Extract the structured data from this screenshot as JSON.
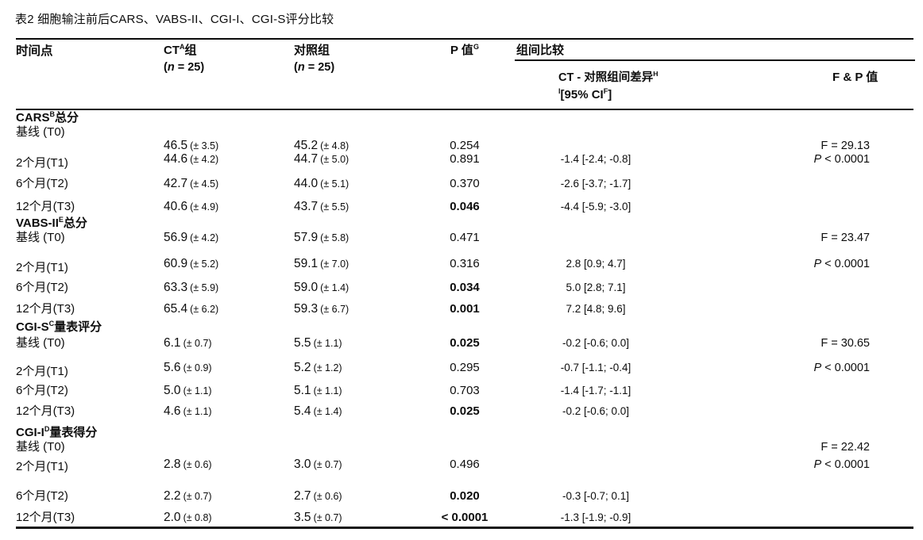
{
  "title": "表2 细胞输注前后CARS、VABS-II、CGI-I、CGI-S评分比较",
  "header": {
    "time_point": "时间点",
    "ct_group": {
      "pre": "CT",
      "sup": "A",
      "post": "组",
      "n_open": "(",
      "n_char": "n",
      "n_rest": " = 25)"
    },
    "control_group": {
      "label": "对照组",
      "n_open": "(",
      "n_char": "n",
      "n_rest": " = 25)"
    },
    "p_value": {
      "pre": "P 值",
      "sup": "G"
    },
    "group_comparison": "组间比较",
    "diff": {
      "pre": "CT - 对照组间差异",
      "sup": "H"
    },
    "ci": {
      "sup_pre": "I",
      "pre": "[95% CI",
      "sup": "F",
      "post": "]"
    },
    "fp": "F & P 值"
  },
  "sections": [
    {
      "name": {
        "pre": "CARS",
        "sup": "B",
        "post": "总分"
      },
      "f_stat": "F = 29.13",
      "p_stat": "P < 0.0001",
      "rows": [
        {
          "label": "基线 (T0)",
          "ct": {
            "v": "46.5",
            "sd": "(± 3.5)"
          },
          "ctrl": {
            "v": "45.2",
            "sd": "(± 4.8)"
          },
          "p": "0.254",
          "p_bold": false,
          "diff": ""
        },
        {
          "label": "2个月(T1)",
          "ct": {
            "v": "44.6",
            "sd": "(± 4.2)"
          },
          "ctrl": {
            "v": "44.7",
            "sd": "(± 5.0)"
          },
          "p": "0.891",
          "p_bold": false,
          "diff": "-1.4 [-2.4; -0.8]"
        },
        {
          "label": "6个月(T2)",
          "ct": {
            "v": "42.7",
            "sd": "(± 4.5)"
          },
          "ctrl": {
            "v": "44.0",
            "sd": "(± 5.1)"
          },
          "p": "0.370",
          "p_bold": false,
          "diff": "-2.6 [-3.7; -1.7]"
        },
        {
          "label": "12个月(T3)",
          "ct": {
            "v": "40.6",
            "sd": "(± 4.9)"
          },
          "ctrl": {
            "v": "43.7",
            "sd": "(± 5.5)"
          },
          "p": "0.046",
          "p_bold": true,
          "diff": "-4.4 [-5.9; -3.0]"
        }
      ]
    },
    {
      "name": {
        "pre": "VABS-II",
        "sup": "E",
        "post": "总分"
      },
      "f_stat": "F = 23.47",
      "p_stat": "P < 0.0001",
      "rows": [
        {
          "label": "基线 (T0)",
          "ct": {
            "v": "56.9",
            "sd": "(± 4.2)"
          },
          "ctrl": {
            "v": "57.9",
            "sd": "(± 5.8)"
          },
          "p": "0.471",
          "p_bold": false,
          "diff": ""
        },
        {
          "label": "2个月(T1)",
          "ct": {
            "v": "60.9",
            "sd": "(± 5.2)"
          },
          "ctrl": {
            "v": "59.1",
            "sd": "(± 7.0)"
          },
          "p": "0.316",
          "p_bold": false,
          "diff": "2.8 [0.9; 4.7]"
        },
        {
          "label": "6个月(T2)",
          "ct": {
            "v": "63.3",
            "sd": "(± 5.9)"
          },
          "ctrl": {
            "v": "59.0",
            "sd": "(± 1.4)"
          },
          "p": "0.034",
          "p_bold": true,
          "diff": "5.0 [2.8; 7.1]"
        },
        {
          "label": "12个月(T3)",
          "ct": {
            "v": "65.4",
            "sd": "(± 6.2)"
          },
          "ctrl": {
            "v": "59.3",
            "sd": "(± 6.7)"
          },
          "p": "0.001",
          "p_bold": true,
          "diff": "7.2 [4.8; 9.6]"
        }
      ]
    },
    {
      "name": {
        "pre": "CGI-S",
        "sup": "C",
        "post": "量表评分"
      },
      "f_stat": "F = 30.65",
      "p_stat": "P < 0.0001",
      "rows": [
        {
          "label": "基线 (T0)",
          "ct": {
            "v": "6.1",
            "sd": "(± 0.7)"
          },
          "ctrl": {
            "v": "5.5",
            "sd": "(± 1.1)"
          },
          "p": "0.025",
          "p_bold": true,
          "diff": "-0.2 [-0.6; 0.0]"
        },
        {
          "label": "2个月(T1)",
          "ct": {
            "v": "5.6",
            "sd": "(± 0.9)"
          },
          "ctrl": {
            "v": "5.2",
            "sd": "(± 1.2)"
          },
          "p": "0.295",
          "p_bold": false,
          "diff": "-0.7 [-1.1; -0.4]"
        },
        {
          "label": "6个月(T2)",
          "ct": {
            "v": "5.0",
            "sd": "(± 1.1)"
          },
          "ctrl": {
            "v": "5.1",
            "sd": "(± 1.1)"
          },
          "p": "0.703",
          "p_bold": false,
          "diff": "-1.4 [-1.7; -1.1]"
        },
        {
          "label": "12个月(T3)",
          "ct": {
            "v": "4.6",
            "sd": "(± 1.1)"
          },
          "ctrl": {
            "v": "5.4",
            "sd": "(± 1.4)"
          },
          "p": "0.025",
          "p_bold": true,
          "diff": "-0.2 [-0.6; 0.0]"
        }
      ]
    },
    {
      "name": {
        "pre": "CGI-I",
        "sup": "D",
        "post": "量表得分"
      },
      "f_stat": "F = 22.42",
      "p_stat": "P < 0.0001",
      "rows": [
        {
          "label": "基线 (T0)",
          "ct": null,
          "ctrl": null,
          "p": "",
          "p_bold": false,
          "diff": ""
        },
        {
          "label": "2个月(T1)",
          "ct": {
            "v": "2.8",
            "sd": "(± 0.6)"
          },
          "ctrl": {
            "v": "3.0",
            "sd": "(± 0.7)"
          },
          "p": "0.496",
          "p_bold": false,
          "diff": ""
        },
        {
          "label": "6个月(T2)",
          "ct": {
            "v": "2.2",
            "sd": "(± 0.7)"
          },
          "ctrl": {
            "v": "2.7",
            "sd": "(± 0.6)"
          },
          "p": "0.020",
          "p_bold": true,
          "diff": "-0.3 [-0.7; 0.1]"
        },
        {
          "label": "12个月(T3)",
          "ct": {
            "v": "2.0",
            "sd": "(± 0.8)"
          },
          "ctrl": {
            "v": "3.5",
            "sd": "(± 0.7)"
          },
          "p": "< 0.0001",
          "p_bold": true,
          "diff": "-1.3 [-1.9; -0.9]"
        }
      ]
    }
  ]
}
